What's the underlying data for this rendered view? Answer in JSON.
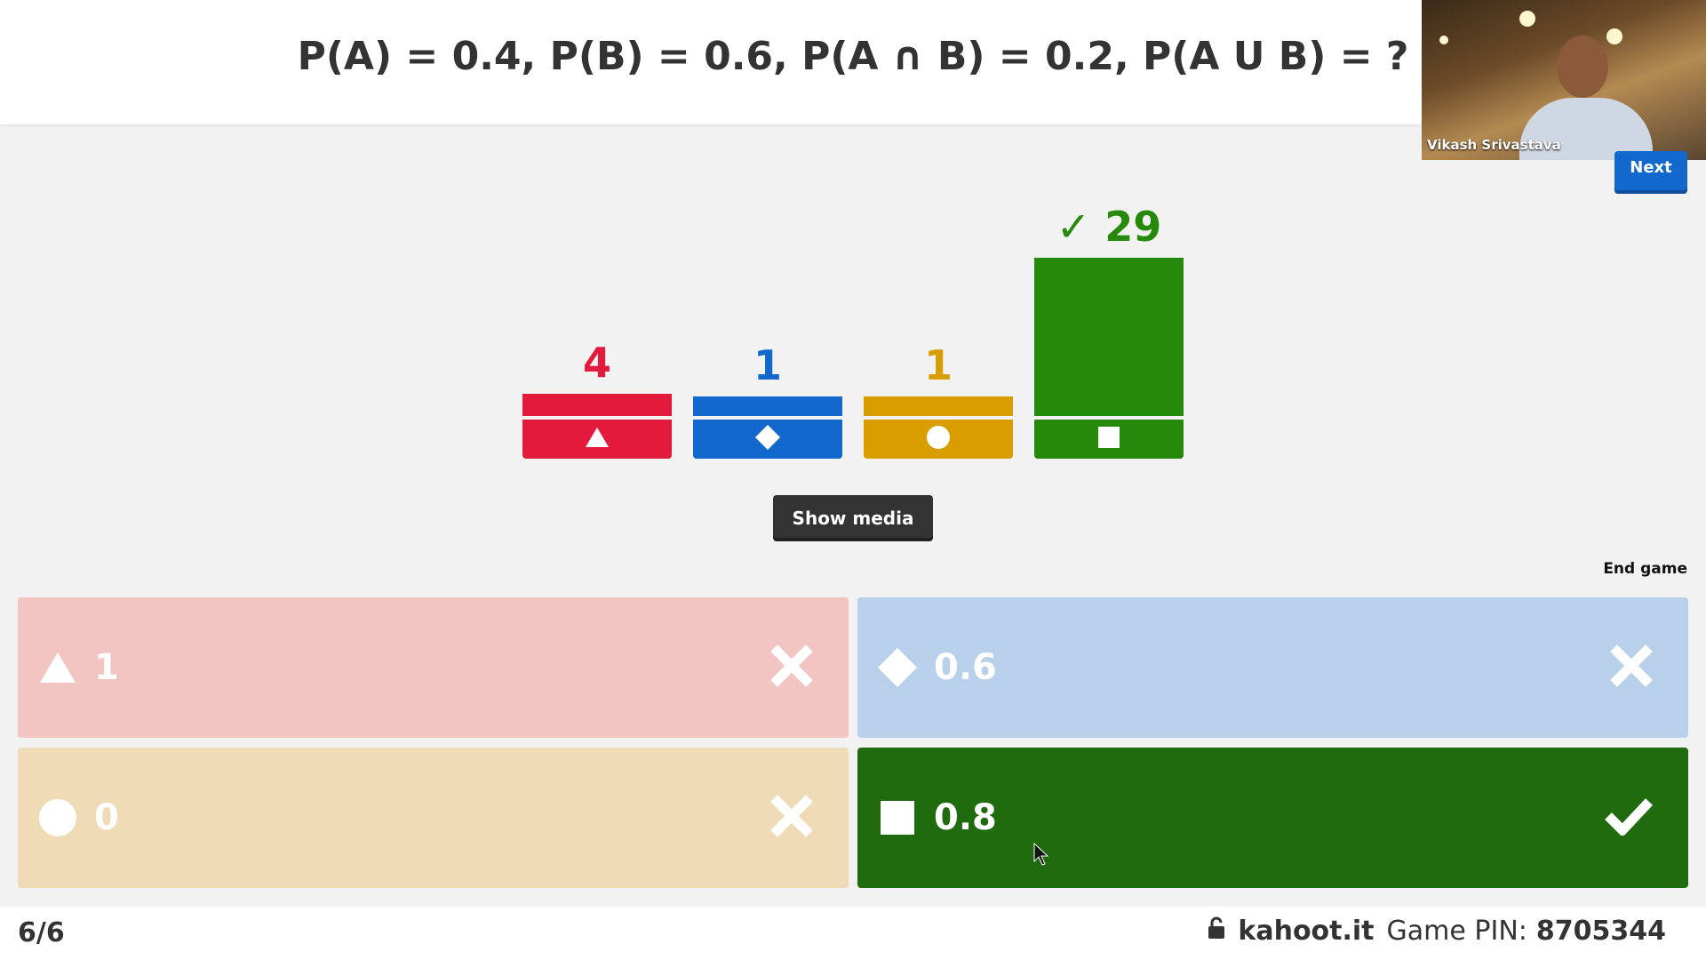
{
  "question": "P(A) = 0.4, P(B) = 0.6, P(A ∩ B) = 0.2, P(A U B) = ?",
  "webcam": {
    "name": "Vikash Srivastava"
  },
  "buttons": {
    "next": "Next",
    "show_media": "Show media",
    "end_game": "End game"
  },
  "colors": {
    "red": "#e21b3c",
    "blue": "#1368ce",
    "yellow": "#d89e00",
    "green": "#26890c"
  },
  "chart_data": {
    "type": "bar",
    "categories": [
      "triangle",
      "diamond",
      "circle",
      "square"
    ],
    "values": [
      4,
      1,
      1,
      29
    ],
    "count_labels": [
      "4",
      "1",
      "1",
      "29"
    ],
    "correct_index": 3,
    "correct_mark": "✓"
  },
  "answers": [
    {
      "shape": "triangle-icon",
      "text": "1",
      "correct": false
    },
    {
      "shape": "diamond-icon",
      "text": "0.6",
      "correct": false
    },
    {
      "shape": "circle-icon",
      "text": "0",
      "correct": false
    },
    {
      "shape": "square-icon",
      "text": "0.8",
      "correct": true
    }
  ],
  "footer": {
    "counter": "6/6",
    "site": "kahoot.it",
    "pin_label": "Game PIN:",
    "pin": "8705344"
  }
}
